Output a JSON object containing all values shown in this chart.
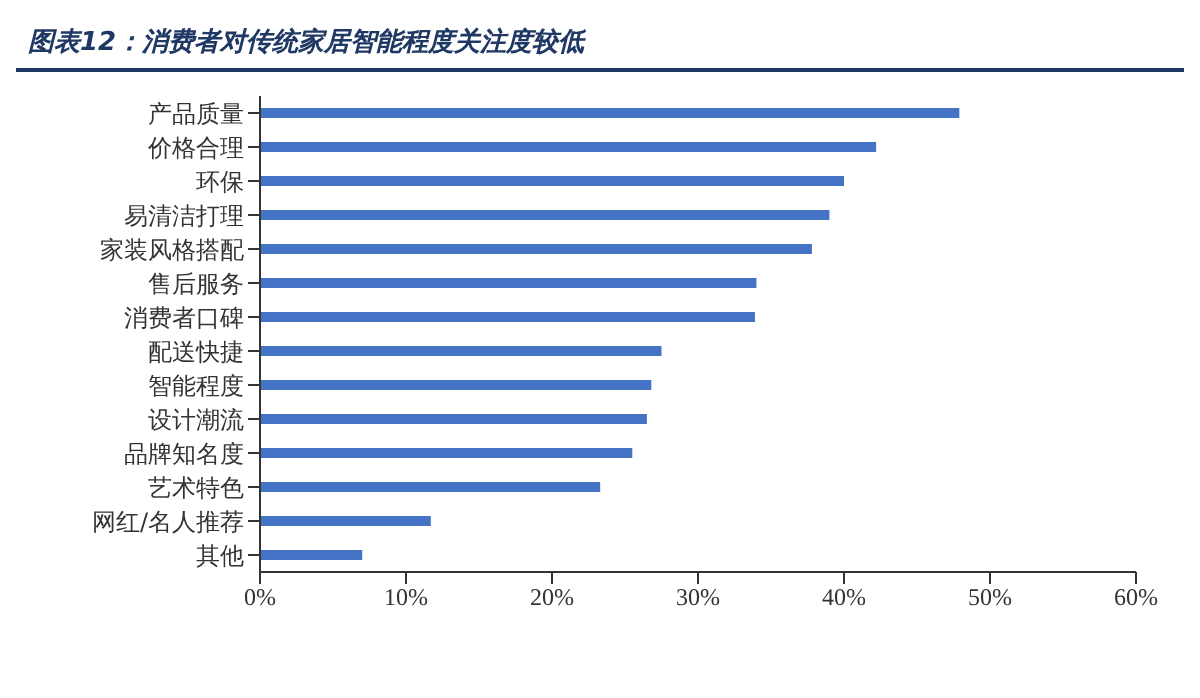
{
  "chart_data": {
    "type": "bar",
    "orientation": "horizontal",
    "title": "图表12：消费者对传统家居智能程度关注度较低",
    "categories": [
      "产品质量",
      "价格合理",
      "环保",
      "易清洁打理",
      "家装风格搭配",
      "售后服务",
      "消费者口碑",
      "配送快捷",
      "智能程度",
      "设计潮流",
      "品牌知名度",
      "艺术特色",
      "网红/名人推荐",
      "其他"
    ],
    "values": [
      47.9,
      42.2,
      40.0,
      39.0,
      37.8,
      34.0,
      33.9,
      27.5,
      26.8,
      26.5,
      25.5,
      23.3,
      11.7,
      7.0
    ],
    "color": "#4472c4",
    "xlim": [
      0,
      60
    ],
    "xticks": [
      {
        "value": 0,
        "label": "0%"
      },
      {
        "value": 10,
        "label": "10%"
      },
      {
        "value": 20,
        "label": "20%"
      },
      {
        "value": 30,
        "label": "30%"
      },
      {
        "value": 40,
        "label": "40%"
      },
      {
        "value": 50,
        "label": "50%"
      },
      {
        "value": 60,
        "label": "60%"
      }
    ],
    "grid": false,
    "legend": false
  }
}
